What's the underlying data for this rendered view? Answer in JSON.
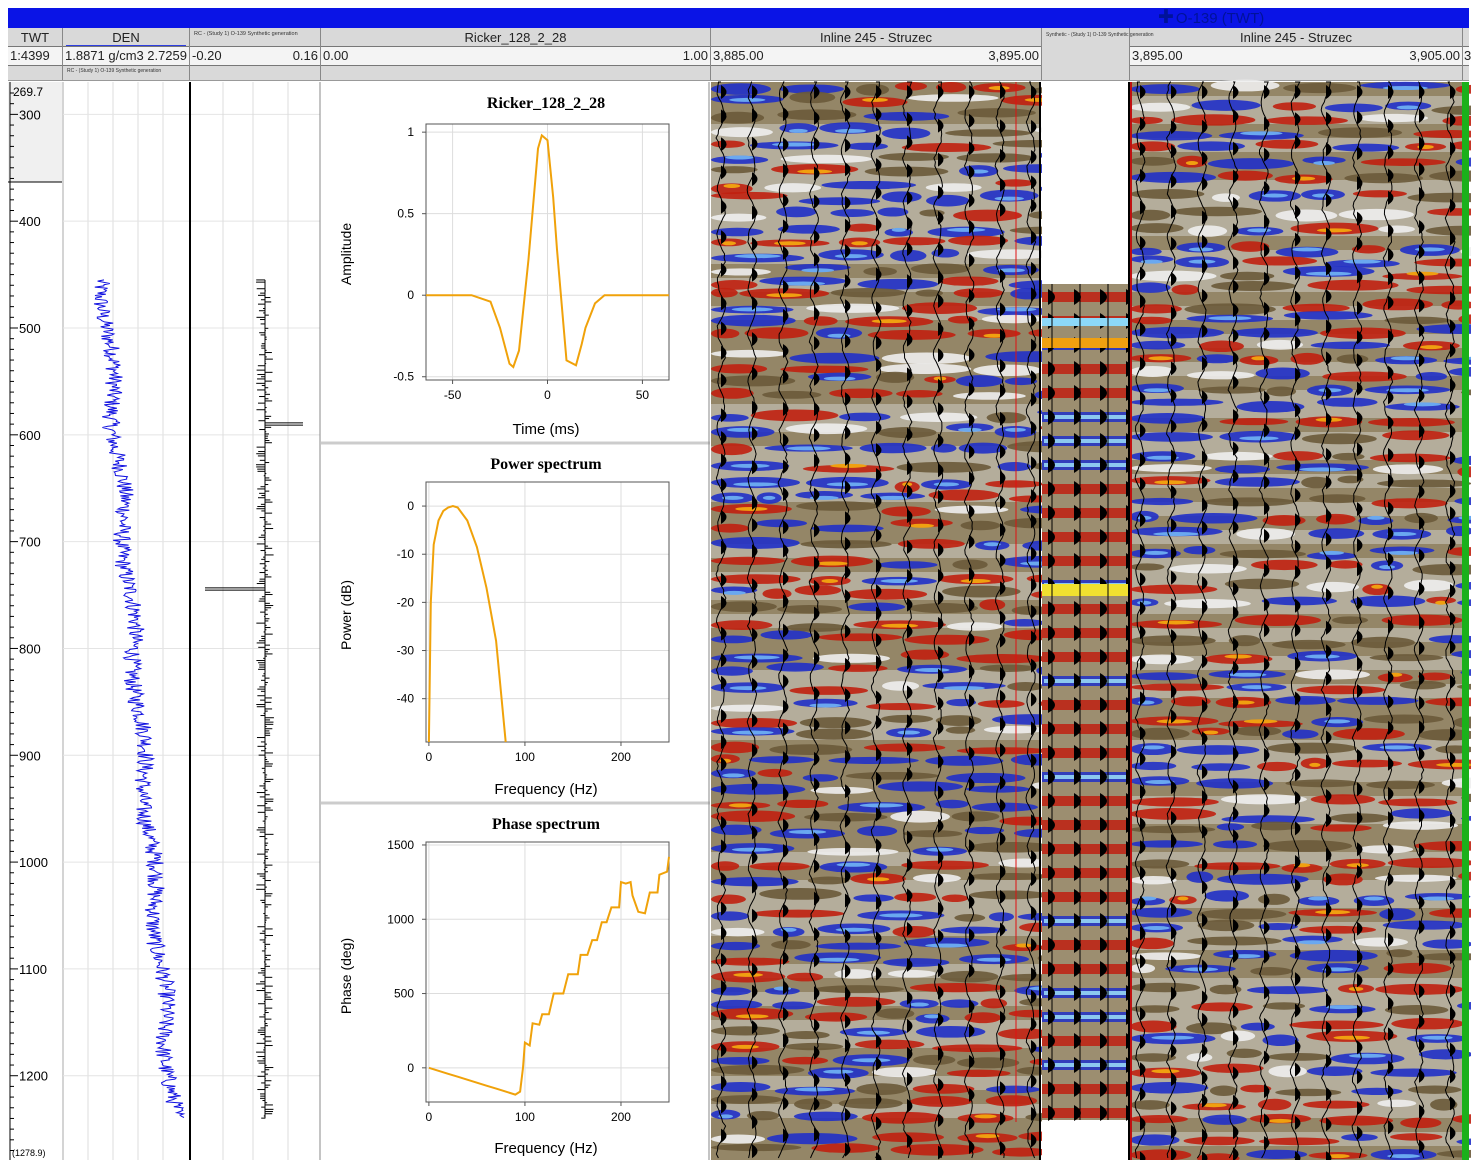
{
  "well_marker": "O-139 (TWT)",
  "header": {
    "twt": {
      "title": "TWT",
      "scale": "1:4399"
    },
    "den": {
      "title": "DEN",
      "left": "1.8871 g/cm3",
      "right": "2.7259",
      "caption": "RC - (Study 1) O-139 Synthetic generation"
    },
    "rc": {
      "title": "RC - (Study 1) O-139 Synthetic generation",
      "left": "-0.20",
      "right": "0.16"
    },
    "wavelet": {
      "title": "Ricker_128_2_28",
      "left": "0.00",
      "right": "1.00"
    },
    "seis1": {
      "title": "Inline 245 - Struzec",
      "left": "3,885.00",
      "right": "3,895.00"
    },
    "synth": {
      "title": "Synthetic - (Study 1) O-139 Synthetic generation"
    },
    "seis2": {
      "title": "Inline 245 - Struzec",
      "left": "3,895.00",
      "right": "3,905.00",
      "cut": "3"
    }
  },
  "time_axis": {
    "top_label": "269.7",
    "bottom_label": "(1278.9)",
    "ticks": [
      "300",
      "400",
      "500",
      "600",
      "700",
      "800",
      "900",
      "1000",
      "1100",
      "1200"
    ]
  },
  "wavelet_chart": {
    "title": "Ricker_128_2_28",
    "xlabel": "Time (ms)",
    "ylabel": "Amplitude",
    "xticks": [
      "-50",
      "0",
      "50"
    ],
    "yticks": [
      "1",
      "0.5",
      "0",
      "-0.5"
    ]
  },
  "power_chart": {
    "title": "Power spectrum",
    "xlabel": "Frequency (Hz)",
    "ylabel": "Power (dB)",
    "xticks": [
      "0",
      "100",
      "200"
    ],
    "yticks": [
      "0",
      "-10",
      "-20",
      "-30",
      "-40"
    ]
  },
  "phase_chart": {
    "title": "Phase spectrum",
    "xlabel": "Frequency (Hz)",
    "ylabel": "Phase (deg)",
    "xticks": [
      "0",
      "100",
      "200"
    ],
    "yticks": [
      "1500",
      "1000",
      "500",
      "0"
    ]
  },
  "chart_data": [
    {
      "type": "line",
      "title": "Ricker_128_2_28",
      "xlabel": "Time (ms)",
      "ylabel": "Amplitude",
      "xlim": [
        -64,
        64
      ],
      "ylim": [
        -0.52,
        1.05
      ],
      "series": [
        {
          "x": [
            -64,
            -40,
            -30,
            -25,
            -20,
            -18,
            -15,
            -10,
            -5,
            -3,
            0,
            3,
            5,
            10,
            15,
            18,
            20,
            25,
            30,
            40,
            64
          ],
          "values": [
            0,
            0,
            -0.04,
            -0.2,
            -0.42,
            -0.44,
            -0.34,
            0.22,
            0.9,
            0.98,
            0.95,
            0.6,
            0.28,
            -0.4,
            -0.43,
            -0.3,
            -0.2,
            -0.05,
            0,
            0,
            0
          ]
        }
      ]
    },
    {
      "type": "line",
      "title": "Power spectrum",
      "xlabel": "Frequency (Hz)",
      "ylabel": "Power (dB)",
      "xlim": [
        -3,
        250
      ],
      "ylim": [
        -49,
        5
      ],
      "series": [
        {
          "x": [
            0,
            2,
            5,
            10,
            15,
            20,
            25,
            30,
            40,
            50,
            60,
            70,
            80
          ],
          "values": [
            -49,
            -20,
            -8,
            -3,
            -1,
            -0.3,
            0,
            -0.3,
            -3,
            -8.5,
            -17,
            -28,
            -49
          ]
        }
      ]
    },
    {
      "type": "line",
      "title": "Phase spectrum",
      "xlabel": "Frequency (Hz)",
      "ylabel": "Phase (deg)",
      "xlim": [
        -3,
        250
      ],
      "ylim": [
        -230,
        1520
      ],
      "series": [
        {
          "x": [
            0,
            10,
            20,
            30,
            40,
            50,
            60,
            70,
            80,
            90,
            95,
            98,
            100,
            105,
            108,
            115,
            118,
            125,
            130,
            140,
            145,
            155,
            158,
            165,
            170,
            175,
            180,
            185,
            190,
            198,
            200,
            205,
            210,
            212,
            218,
            225,
            230,
            238,
            240,
            248,
            250
          ],
          "values": [
            0,
            -20,
            -40,
            -60,
            -80,
            -100,
            -120,
            -140,
            -160,
            -180,
            -160,
            0,
            170,
            150,
            300,
            290,
            360,
            360,
            500,
            500,
            630,
            630,
            760,
            760,
            860,
            860,
            980,
            980,
            1080,
            1080,
            1250,
            1240,
            1250,
            1160,
            1050,
            1040,
            1180,
            1180,
            1300,
            1320,
            1420
          ]
        }
      ]
    }
  ]
}
